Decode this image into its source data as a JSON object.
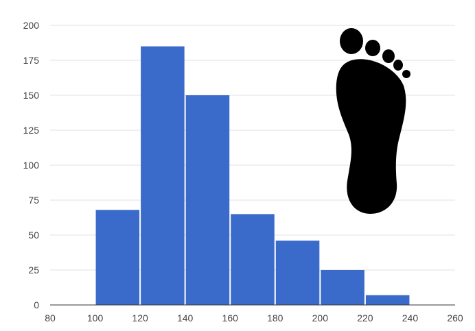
{
  "chart_data": {
    "type": "bar",
    "title": "",
    "xlabel": "",
    "ylabel": "",
    "bins": [
      {
        "x0": 100,
        "x1": 120,
        "value": 68
      },
      {
        "x0": 120,
        "x1": 140,
        "value": 185
      },
      {
        "x0": 140,
        "x1": 160,
        "value": 150
      },
      {
        "x0": 160,
        "x1": 180,
        "value": 65
      },
      {
        "x0": 180,
        "x1": 200,
        "value": 46
      },
      {
        "x0": 200,
        "x1": 220,
        "value": 25
      },
      {
        "x0": 220,
        "x1": 240,
        "value": 7
      }
    ],
    "xlim": [
      80,
      260
    ],
    "ylim": [
      0,
      200
    ],
    "x_ticks": [
      "80",
      "100",
      "120",
      "140",
      "160",
      "180",
      "200",
      "220",
      "240",
      "260"
    ],
    "y_ticks": [
      "0",
      "25",
      "50",
      "75",
      "100",
      "125",
      "150",
      "175",
      "200"
    ],
    "grid": true,
    "legend": "none",
    "bar_color": "#3a6bcb"
  },
  "decoration": {
    "icon": "footprint-icon",
    "color": "#000000"
  }
}
